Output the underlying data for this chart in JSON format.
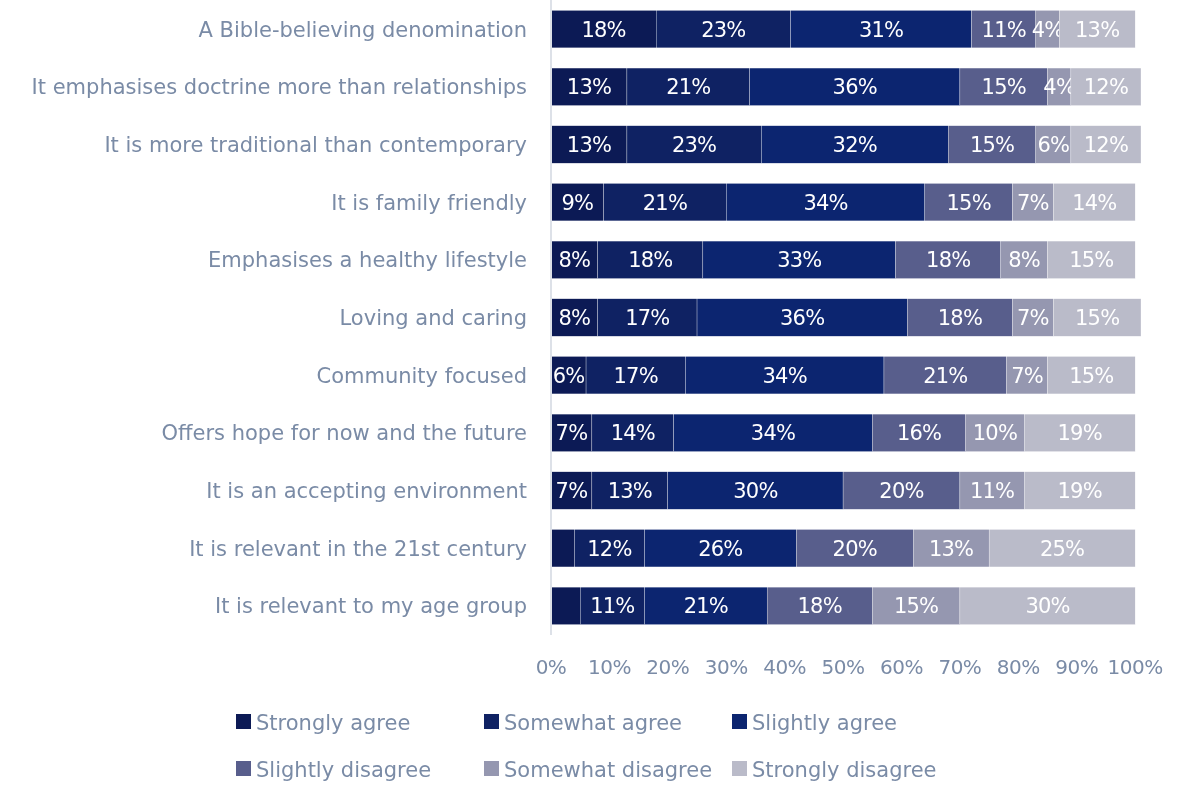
{
  "chart_data": {
    "type": "bar",
    "orientation": "horizontal",
    "stacked": true,
    "categories": [
      "A Bible-believing denomination",
      "It emphasises doctrine more than relationships",
      "It is more traditional than contemporary",
      "It is family friendly",
      "Emphasises a healthy lifestyle",
      "Loving and caring",
      "Community focused",
      "Offers hope for now and the future",
      "It is an accepting environment",
      "It is relevant in the 21st century",
      "It is relevant to my age group"
    ],
    "series": [
      {
        "name": "Strongly agree",
        "color": "#0c1a55",
        "values": [
          18,
          13,
          13,
          9,
          8,
          8,
          6,
          7,
          7,
          4,
          5
        ],
        "value_labels": [
          "18%",
          "13%",
          "13%",
          "9%",
          "8%",
          "8%",
          "6%",
          "7%",
          "7%",
          null,
          null
        ]
      },
      {
        "name": "Somewhat agree",
        "color": "#0f2263",
        "values": [
          23,
          21,
          23,
          21,
          18,
          17,
          17,
          14,
          13,
          12,
          11
        ],
        "value_labels": [
          "23%",
          "21%",
          "23%",
          "21%",
          "18%",
          "17%",
          "17%",
          "14%",
          "13%",
          "12%",
          "11%"
        ]
      },
      {
        "name": "Slightly agree",
        "color": "#0c2570",
        "values": [
          31,
          36,
          32,
          34,
          33,
          36,
          34,
          34,
          30,
          26,
          21
        ],
        "value_labels": [
          "31%",
          "36%",
          "32%",
          "34%",
          "33%",
          "36%",
          "34%",
          "34%",
          "30%",
          "26%",
          "21%"
        ]
      },
      {
        "name": "Slightly disagree",
        "color": "#585e8c",
        "values": [
          11,
          15,
          15,
          15,
          18,
          18,
          21,
          16,
          20,
          20,
          18
        ],
        "value_labels": [
          "11%",
          "15%",
          "15%",
          "15%",
          "18%",
          "18%",
          "21%",
          "16%",
          "20%",
          "20%",
          "18%"
        ]
      },
      {
        "name": "Somewhat disagree",
        "color": "#9597b0",
        "values": [
          4,
          4,
          6,
          7,
          8,
          7,
          7,
          10,
          11,
          13,
          15
        ],
        "value_labels": [
          "4%",
          "4%",
          "6%",
          "7%",
          "8%",
          "7%",
          "7%",
          "10%",
          "11%",
          "13%",
          "15%"
        ]
      },
      {
        "name": "Strongly disagree",
        "color": "#babbc9",
        "values": [
          13,
          12,
          12,
          14,
          15,
          15,
          15,
          19,
          19,
          25,
          30
        ],
        "value_labels": [
          "13%",
          "12%",
          "12%",
          "14%",
          "15%",
          "15%",
          "15%",
          "19%",
          "19%",
          "25%",
          "30%"
        ]
      }
    ],
    "xlim": [
      0,
      101
    ],
    "xticks": [
      {
        "value": 0,
        "label": "0%"
      },
      {
        "value": 10,
        "label": "10%"
      },
      {
        "value": 20,
        "label": "20%"
      },
      {
        "value": 30,
        "label": "30%"
      },
      {
        "value": 40,
        "label": "40%"
      },
      {
        "value": 50,
        "label": "50%"
      },
      {
        "value": 60,
        "label": "60%"
      },
      {
        "value": 70,
        "label": "70%"
      },
      {
        "value": 80,
        "label": "80%"
      },
      {
        "value": 90,
        "label": "90%"
      },
      {
        "value": 100,
        "label": "100%"
      }
    ],
    "grid": false,
    "legend": "bottom"
  }
}
